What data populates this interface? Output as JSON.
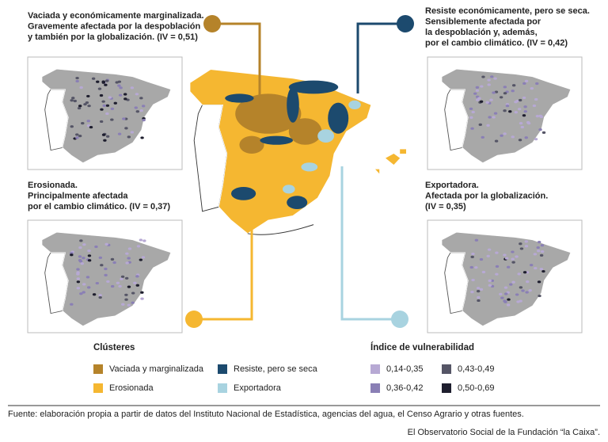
{
  "panels": [
    {
      "title_lines": [
        "Vaciada y económicamente marginalizada.",
        "Gravemente afectada por la despoblación",
        "y también por la globalización. (IV = 0,51)"
      ]
    },
    {
      "title_lines": [
        "Resiste económicamente, pero se seca.",
        "Sensiblemente afectada por",
        "la despoblación y, además,",
        "por el cambio climático. (IV = 0,42)"
      ]
    },
    {
      "title_lines": [
        "Erosionada.",
        "Principalmente afectada",
        "por el cambio climático. (IV = 0,37)"
      ]
    },
    {
      "title_lines": [
        "Exportadora.",
        "Afectada por la globalización.",
        "(IV = 0,35)"
      ]
    }
  ],
  "legend": {
    "clusters": {
      "title": "Clústeres",
      "items": [
        {
          "label": "Vaciada y marginalizada",
          "color": "#b5832a"
        },
        {
          "label": "Erosionada",
          "color": "#f5b731"
        },
        {
          "label": "Resiste, pero se seca",
          "color": "#1c4a6e"
        },
        {
          "label": "Exportadora",
          "color": "#a8d3e0"
        }
      ]
    },
    "vulnerability": {
      "title": "Índice de vulnerabilidad",
      "items": [
        {
          "label": "0,14-0,35",
          "color": "#b7a9d4"
        },
        {
          "label": "0,36-0,42",
          "color": "#8a7fb5"
        },
        {
          "label": "0,43-0,49",
          "color": "#555566"
        },
        {
          "label": "0,50-0,69",
          "color": "#1e1e2e"
        }
      ]
    }
  },
  "footer": {
    "source": "Fuente: elaboración propia a partir de datos del Instituto Nacional de Estadística, agencias del agua, el Censo Agrario y otras fuentes.",
    "credit": "El Observatorio Social de la Fundación “la Caixa”."
  }
}
